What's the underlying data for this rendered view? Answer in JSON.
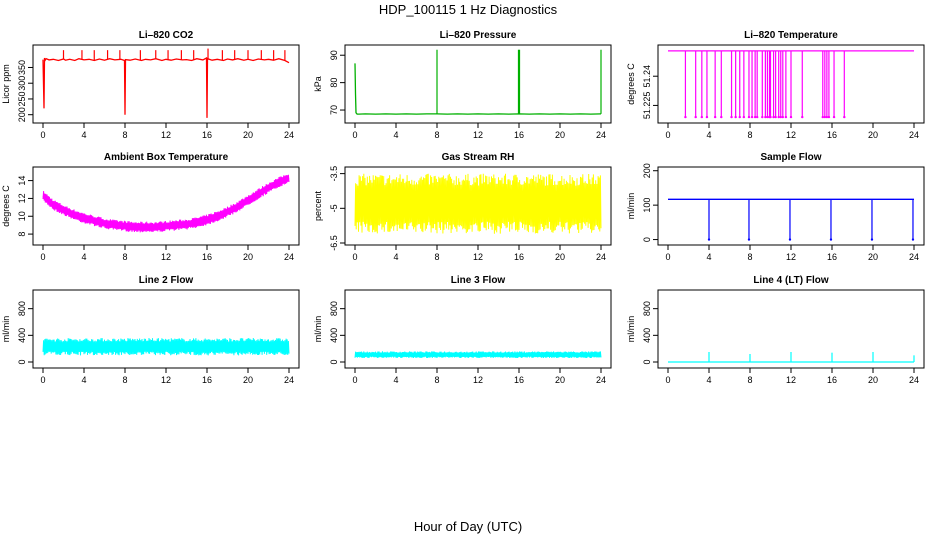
{
  "page": {
    "title": "HDP_100115  1 Hz Diagnostics",
    "xlabel": "Hour of Day (UTC)"
  },
  "chart_data": [
    {
      "type": "line",
      "title": "Li–820 CO2",
      "ylabel": "Licor ppm",
      "color": "#ff0000",
      "xlim": [
        0,
        24
      ],
      "xticks": [
        0,
        4,
        8,
        12,
        16,
        20,
        24
      ],
      "ylim": [
        180,
        415
      ],
      "yticks": [
        200,
        250,
        300,
        350
      ],
      "x": [
        0,
        0.1,
        0.15,
        0.2,
        0.3,
        0.6,
        1.0,
        1.5,
        2.0,
        2.2,
        2.6,
        3.1,
        3.5,
        4.0,
        4.5,
        5.0,
        5.5,
        6.0,
        6.5,
        7.0,
        7.6,
        7.95,
        8.0,
        8.05,
        8.5,
        9.0,
        9.6,
        10.0,
        10.5,
        11.0,
        11.6,
        12.0,
        12.5,
        13.0,
        13.6,
        14.0,
        14.5,
        15.0,
        15.6,
        15.95,
        16.0,
        16.05,
        16.5,
        17.0,
        17.6,
        18.0,
        18.5,
        19.0,
        19.6,
        20.0,
        20.5,
        21.0,
        21.6,
        22.0,
        22.5,
        23.0,
        23.6,
        24.0
      ],
      "y": [
        375,
        220,
        380,
        372,
        378,
        374,
        376,
        372,
        377,
        373,
        376,
        372,
        378,
        374,
        376,
        372,
        377,
        373,
        378,
        374,
        376,
        372,
        200,
        375,
        373,
        377,
        372,
        376,
        374,
        378,
        372,
        376,
        373,
        377,
        374,
        375,
        372,
        378,
        374,
        380,
        190,
        378,
        373,
        376,
        372,
        377,
        374,
        378,
        373,
        376,
        372,
        377,
        374,
        376,
        373,
        378,
        372,
        365
      ],
      "spikes": {
        "x": [
          2.0,
          3.8,
          5.0,
          6.3,
          7.5,
          9.5,
          11.0,
          12.2,
          13.5,
          14.7,
          16.1,
          17.5,
          18.7,
          20.0,
          21.3,
          22.5,
          23.6
        ],
        "y": [
          405,
          405,
          405,
          405,
          405,
          405,
          405,
          405,
          405,
          405,
          410,
          405,
          405,
          405,
          405,
          405,
          405
        ]
      }
    },
    {
      "type": "line",
      "title": "Li–820 Pressure",
      "ylabel": "kPa",
      "color": "#00b000",
      "xlim": [
        0,
        24
      ],
      "xticks": [
        0,
        4,
        8,
        12,
        16,
        20,
        24
      ],
      "ylim": [
        66,
        93
      ],
      "yticks": [
        70,
        80,
        90
      ],
      "x": [
        0,
        0.05,
        0.1,
        0.2,
        0.4,
        1,
        2,
        3,
        4,
        5,
        6,
        7,
        8,
        9,
        10,
        11,
        12,
        13,
        14,
        15,
        16,
        17,
        18,
        19,
        20,
        21,
        22,
        23,
        24
      ],
      "y": [
        87,
        76,
        69,
        68.5,
        68.5,
        68.6,
        68.5,
        68.6,
        68.5,
        68.6,
        68.5,
        68.6,
        68.6,
        68.5,
        68.6,
        68.5,
        68.6,
        68.5,
        68.6,
        68.5,
        68.6,
        68.5,
        68.6,
        68.5,
        68.6,
        68.5,
        68.6,
        68.5,
        68.6
      ],
      "spikes": {
        "x": [
          8.0,
          15.95,
          16.05,
          24.0
        ],
        "y": [
          92,
          92,
          92,
          92
        ]
      }
    },
    {
      "type": "line",
      "title": "Li–820 Temperature",
      "ylabel": "degrees C",
      "color": "#ff00ff",
      "xlim": [
        0,
        24
      ],
      "xticks": [
        0,
        4,
        8,
        12,
        16,
        20,
        24
      ],
      "ylim": [
        51.217,
        51.255
      ],
      "yticks": [
        51.225,
        51.24
      ],
      "x": [
        0,
        24
      ],
      "y": [
        51.253,
        51.253
      ],
      "dips": {
        "x": [
          1.7,
          2.7,
          3.3,
          3.8,
          4.6,
          5.2,
          6.2,
          6.6,
          7.0,
          7.4,
          7.9,
          8.2,
          8.5,
          8.7,
          9.2,
          9.5,
          9.7,
          9.9,
          10.0,
          10.3,
          10.5,
          10.8,
          11.0,
          11.2,
          11.5,
          12.0,
          13.1,
          15.1,
          15.3,
          15.5,
          15.7,
          16.2,
          17.2
        ],
        "y": 51.219
      }
    },
    {
      "type": "line",
      "title": "Ambient Box Temperature",
      "ylabel": "degrees C",
      "color": "#ff00ff",
      "xlim": [
        0,
        24
      ],
      "xticks": [
        0,
        4,
        8,
        12,
        16,
        20,
        24
      ],
      "ylim": [
        7,
        15.3
      ],
      "yticks": [
        8,
        10,
        12,
        14
      ],
      "x": [
        0,
        1,
        2,
        3,
        4,
        5,
        6,
        7,
        8,
        9,
        10,
        11,
        12,
        13,
        14,
        15,
        16,
        17,
        18,
        19,
        20,
        21,
        22,
        23,
        24
      ],
      "y": [
        12.3,
        11.3,
        10.7,
        10.2,
        9.8,
        9.5,
        9.2,
        9.0,
        8.9,
        8.8,
        8.8,
        8.8,
        8.9,
        9.0,
        9.1,
        9.3,
        9.6,
        10.0,
        10.5,
        11.1,
        11.8,
        12.5,
        13.2,
        13.8,
        14.3
      ],
      "band": 1.2
    },
    {
      "type": "line",
      "title": "Gas Stream RH",
      "ylabel": "percent",
      "color": "#ffff00",
      "xlim": [
        0,
        24
      ],
      "xticks": [
        0,
        4,
        8,
        12,
        16,
        20,
        24
      ],
      "ylim": [
        -6.5,
        -3.3
      ],
      "yticks": [
        -6.5,
        -5.0,
        -3.5
      ],
      "x": [
        0,
        24
      ],
      "y": [
        -4.8,
        -4.8
      ],
      "band": 2.6
    },
    {
      "type": "line",
      "title": "Sample Flow",
      "ylabel": "ml/min",
      "color": "#0000ff",
      "xlim": [
        0,
        24
      ],
      "xticks": [
        0,
        4,
        8,
        12,
        16,
        20,
        24
      ],
      "ylim": [
        -10,
        205
      ],
      "yticks": [
        0,
        100,
        200
      ],
      "x": [
        0,
        24
      ],
      "y": [
        117,
        117
      ],
      "dips": {
        "x": [
          4.0,
          7.9,
          11.9,
          15.9,
          19.9,
          23.9
        ],
        "y": 0
      }
    },
    {
      "type": "line",
      "title": "Line 2 Flow",
      "ylabel": "ml/min",
      "color": "#00ffff",
      "xlim": [
        0,
        24
      ],
      "xticks": [
        0,
        4,
        8,
        12,
        16,
        20,
        24
      ],
      "ylim": [
        -60,
        1050
      ],
      "yticks": [
        0,
        400,
        800
      ],
      "x": [
        0,
        24
      ],
      "y": [
        230,
        230
      ],
      "band": 260
    },
    {
      "type": "line",
      "title": "Line 3 Flow",
      "ylabel": "ml/min",
      "color": "#00ffff",
      "xlim": [
        0,
        24
      ],
      "xticks": [
        0,
        4,
        8,
        12,
        16,
        20,
        24
      ],
      "ylim": [
        -60,
        1050
      ],
      "yticks": [
        0,
        400,
        800
      ],
      "x": [
        0,
        24
      ],
      "y": [
        110,
        110
      ],
      "band": 100
    },
    {
      "type": "line",
      "title": "Line 4 (LT) Flow",
      "ylabel": "ml/min",
      "color": "#00ffff",
      "xlim": [
        0,
        24
      ],
      "xticks": [
        0,
        4,
        8,
        12,
        16,
        20,
        24
      ],
      "ylim": [
        -60,
        1050
      ],
      "yticks": [
        0,
        400,
        800
      ],
      "x": [
        0,
        24
      ],
      "y": [
        0,
        0
      ],
      "spikes": {
        "x": [
          4.0,
          8.0,
          12.0,
          16.0,
          20.0,
          24.0
        ],
        "y": [
          150,
          120,
          150,
          140,
          150,
          100
        ]
      }
    }
  ]
}
